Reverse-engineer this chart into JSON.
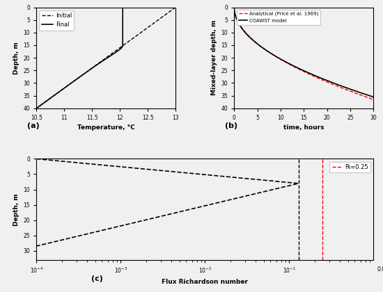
{
  "panel_a": {
    "xlabel": "Temperature, °C",
    "ylabel": "Depth, m",
    "xlim": [
      10.5,
      13.0
    ],
    "ylim": [
      40,
      0
    ],
    "xticks": [
      10.5,
      11.0,
      11.5,
      12.0,
      12.5,
      13.0
    ],
    "xticklabels": [
      "10.5",
      "11",
      "11.5",
      "12",
      "12.5",
      "13"
    ],
    "yticks": [
      0,
      5,
      10,
      15,
      20,
      25,
      30,
      35,
      40
    ],
    "label": "(a)"
  },
  "panel_b": {
    "xlabel": "time, hours",
    "ylabel": "Mixed-layer depth, m",
    "xlim": [
      0,
      30
    ],
    "ylim": [
      40,
      0
    ],
    "xticks": [
      0,
      5,
      10,
      15,
      20,
      25,
      30
    ],
    "yticks": [
      0,
      5,
      10,
      15,
      20,
      25,
      30,
      35,
      40
    ],
    "label": "(b)"
  },
  "panel_c": {
    "xlabel": "Flux Richardson number",
    "ylabel": "Depth, m",
    "xlim_log": [
      -4,
      0
    ],
    "ylim": [
      33,
      0
    ],
    "yticks": [
      0,
      5,
      10,
      15,
      20,
      25,
      30
    ],
    "ri_critical": 0.25,
    "ri_label": "Ri=0.25",
    "label": "(c)"
  },
  "bg_color": "#f0f0f0",
  "white": "#ffffff"
}
